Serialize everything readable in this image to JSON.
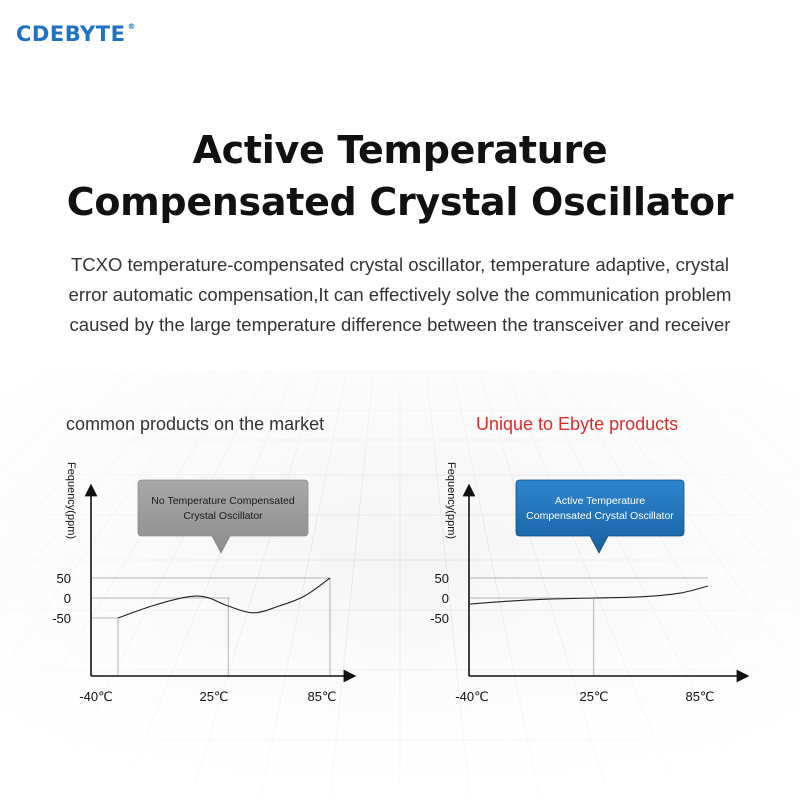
{
  "brand": {
    "name": "CDEBYTE",
    "mark": "®"
  },
  "headline": {
    "line1": "Active Temperature",
    "line2": "Compensated Crystal Oscillator"
  },
  "description": {
    "lines": [
      "TCXO temperature-compensated crystal oscillator, temperature adaptive, crystal",
      "error automatic compensation,It can effectively solve the communication problem",
      "caused by the large temperature difference between the transceiver and receiver"
    ]
  },
  "colors": {
    "brand": "#1f73c2",
    "accent_red": "#d6302d",
    "callout_gray": "#9a9a9a",
    "callout_blue": "#1e6fb5"
  },
  "chart_data": [
    {
      "type": "line",
      "title": "common products on the market",
      "ylabel": "Fequency(ppm)",
      "callout": "No Temperature Compensated Crystal Oscillator",
      "callout_lines": [
        "No Temperature Compensated",
        "Crystal Oscillator"
      ],
      "x_ticks": [
        "-40℃",
        "25℃",
        "85℃"
      ],
      "y_ticks": [
        "50",
        "0",
        "-50"
      ],
      "xlim": [
        -40,
        85
      ],
      "ylim": [
        -50,
        50
      ],
      "series": [
        {
          "x": [
            -40,
            -20,
            0,
            12,
            25,
            40,
            55,
            70,
            85
          ],
          "y": [
            -50,
            -20,
            2,
            2,
            -20,
            -37,
            -20,
            5,
            50
          ]
        }
      ]
    },
    {
      "type": "line",
      "title": "Unique to Ebyte products",
      "ylabel": "Fequency(ppm)",
      "callout": "Active Temperature Compensated Crystal Oscillator",
      "callout_lines": [
        "Active Temperature",
        "Compensated Crystal Oscillator"
      ],
      "x_ticks": [
        "-40℃",
        "25℃",
        "85℃"
      ],
      "y_ticks": [
        "50",
        "0",
        "-50"
      ],
      "xlim": [
        -40,
        85
      ],
      "ylim": [
        -50,
        50
      ],
      "series": [
        {
          "x": [
            -40,
            -20,
            0,
            25,
            50,
            70,
            85
          ],
          "y": [
            -15,
            -8,
            -3,
            0,
            3,
            12,
            30
          ]
        }
      ]
    }
  ]
}
